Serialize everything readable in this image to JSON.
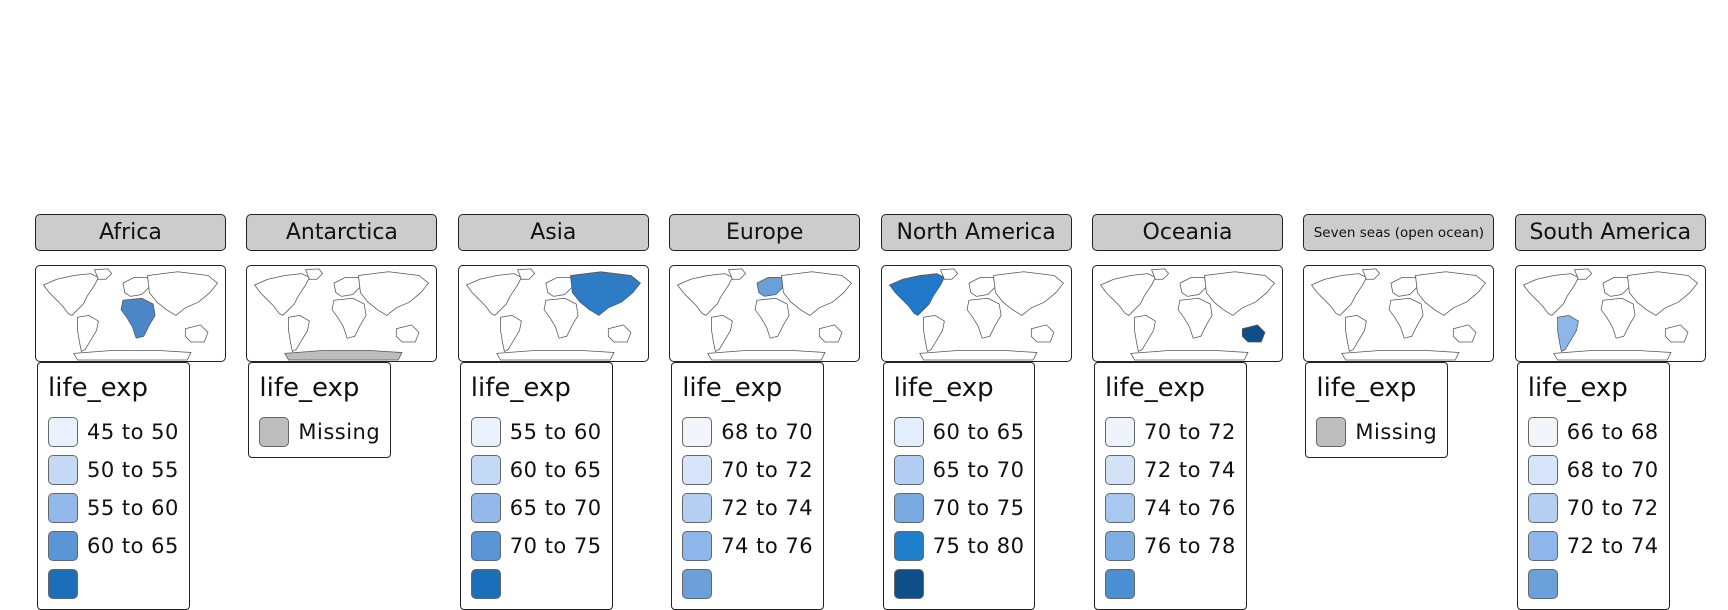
{
  "legend_title": "life_exp",
  "facets": [
    {
      "name": "Africa",
      "highlight": "#4a86c8",
      "regions": [
        "africa"
      ],
      "legend": [
        {
          "label": "45 to 50",
          "color": "#e9f1fc"
        },
        {
          "label": "50 to 55",
          "color": "#c3d9f5"
        },
        {
          "label": "55 to 60",
          "color": "#93b8ea"
        },
        {
          "label": "60 to 65",
          "color": "#5a96d6"
        },
        {
          "label": "",
          "color": "#1a6fb8"
        }
      ]
    },
    {
      "name": "Antarctica",
      "highlight": "#bdbdbd",
      "regions": [
        "antarctica"
      ],
      "legend": [
        {
          "label": "Missing",
          "color": "#bdbdbd"
        }
      ]
    },
    {
      "name": "Asia",
      "highlight": "#2f7cc6",
      "regions": [
        "asia"
      ],
      "legend": [
        {
          "label": "55 to 60",
          "color": "#e9f1fc"
        },
        {
          "label": "60 to 65",
          "color": "#c3d9f5"
        },
        {
          "label": "65 to 70",
          "color": "#93b8ea"
        },
        {
          "label": "70 to 75",
          "color": "#5a96d6"
        },
        {
          "label": "",
          "color": "#1a6fb8"
        }
      ]
    },
    {
      "name": "Europe",
      "highlight": "#6a9fd8",
      "regions": [
        "europe"
      ],
      "legend": [
        {
          "label": "68 to 70",
          "color": "#f2f6fb"
        },
        {
          "label": "70 to 72",
          "color": "#d6e5f9"
        },
        {
          "label": "72 to 74",
          "color": "#b5cff3"
        },
        {
          "label": "74 to 76",
          "color": "#8fb6ea"
        },
        {
          "label": "",
          "color": "#6a9fd8"
        }
      ]
    },
    {
      "name": "North America",
      "highlight": "#1f78c8",
      "regions": [
        "namerica"
      ],
      "legend": [
        {
          "label": "60 to 65",
          "color": "#e3eefc"
        },
        {
          "label": "65 to 70",
          "color": "#b3cef5"
        },
        {
          "label": "70 to 75",
          "color": "#79a9e0"
        },
        {
          "label": "75 to 80",
          "color": "#1f7fcb"
        },
        {
          "label": "",
          "color": "#0e4f8a"
        }
      ]
    },
    {
      "name": "Oceania",
      "highlight": "#0e4f8a",
      "regions": [
        "oceania"
      ],
      "legend": [
        {
          "label": "70 to 72",
          "color": "#eef4fc"
        },
        {
          "label": "72 to 74",
          "color": "#d2e3f8"
        },
        {
          "label": "74 to 76",
          "color": "#a9c8f0"
        },
        {
          "label": "76 to 78",
          "color": "#7eaee3"
        },
        {
          "label": "",
          "color": "#4a8fd2"
        }
      ]
    },
    {
      "name": "Seven seas (open ocean)",
      "highlight": "#bdbdbd",
      "regions": [],
      "legend": [
        {
          "label": "Missing",
          "color": "#bdbdbd"
        }
      ]
    },
    {
      "name": "South America",
      "highlight": "#8fb6ea",
      "regions": [
        "samerica"
      ],
      "legend": [
        {
          "label": "66 to 68",
          "color": "#f2f6fb"
        },
        {
          "label": "68 to 70",
          "color": "#d6e5f9"
        },
        {
          "label": "70 to 72",
          "color": "#b5cff3"
        },
        {
          "label": "72 to 74",
          "color": "#8fb6ea"
        },
        {
          "label": "",
          "color": "#6a9fd8"
        }
      ]
    }
  ]
}
